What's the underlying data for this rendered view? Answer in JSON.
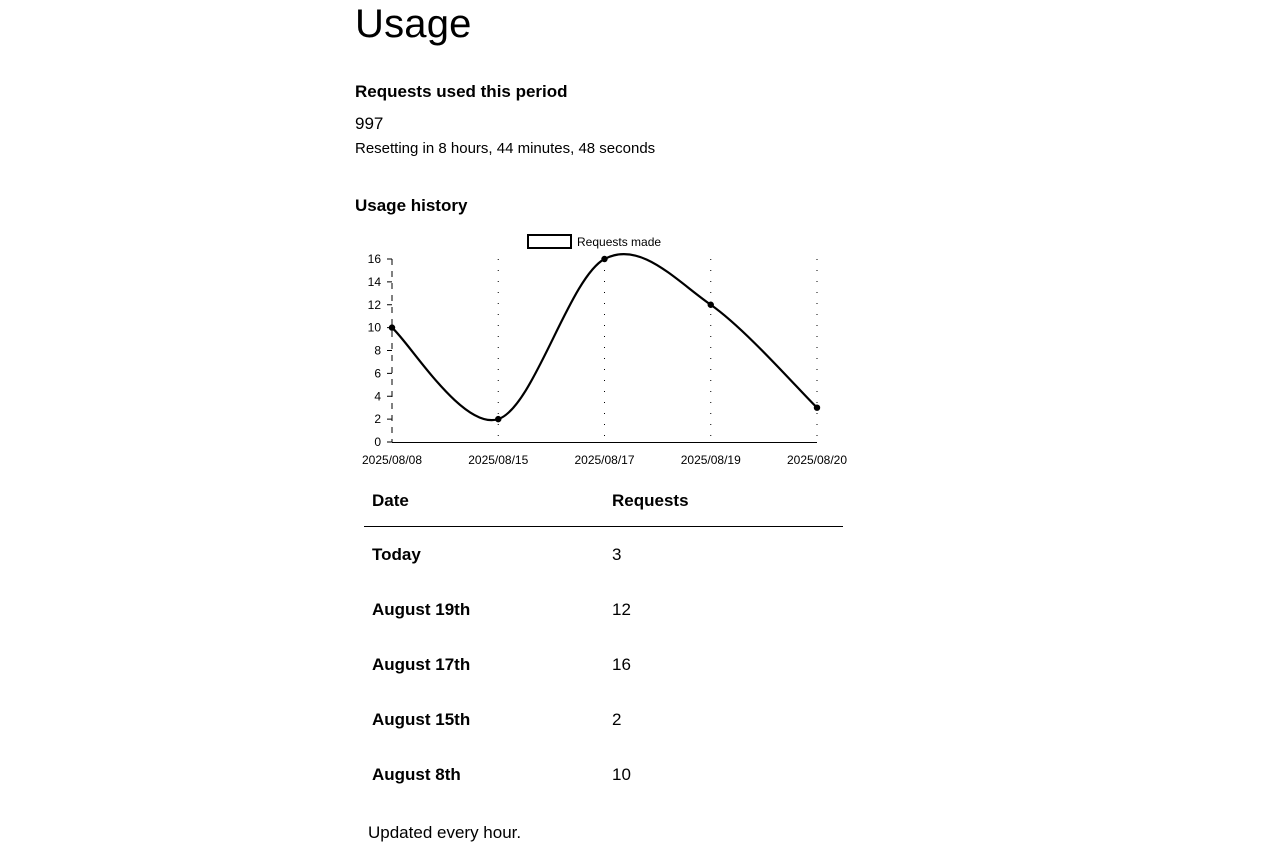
{
  "page": {
    "title": "Usage"
  },
  "current_period": {
    "heading": "Requests used this period",
    "count": "997",
    "reset_text": "Resetting in 8 hours, 44 minutes, 48 seconds"
  },
  "history": {
    "heading": "Usage history"
  },
  "chart_data": {
    "type": "line",
    "x": [
      "2025/08/08",
      "2025/08/15",
      "2025/08/17",
      "2025/08/19",
      "2025/08/20"
    ],
    "series": [
      {
        "name": "Requests made",
        "values": [
          10,
          2,
          16,
          12,
          3
        ]
      }
    ],
    "ylim": [
      0,
      16
    ],
    "yticks": [
      0,
      2,
      4,
      6,
      8,
      10,
      12,
      14,
      16
    ],
    "legend": "top",
    "grid": "vertical dotted",
    "colors": {
      "line": "#000000",
      "legend_box_fill": "#ffffff"
    }
  },
  "table": {
    "headers": {
      "date": "Date",
      "requests": "Requests"
    },
    "rows": [
      {
        "date": "Today",
        "requests": "3"
      },
      {
        "date": "August 19th",
        "requests": "12"
      },
      {
        "date": "August 17th",
        "requests": "16"
      },
      {
        "date": "August 15th",
        "requests": "2"
      },
      {
        "date": "August 8th",
        "requests": "10"
      }
    ]
  },
  "footer": {
    "note": "Updated every hour."
  }
}
